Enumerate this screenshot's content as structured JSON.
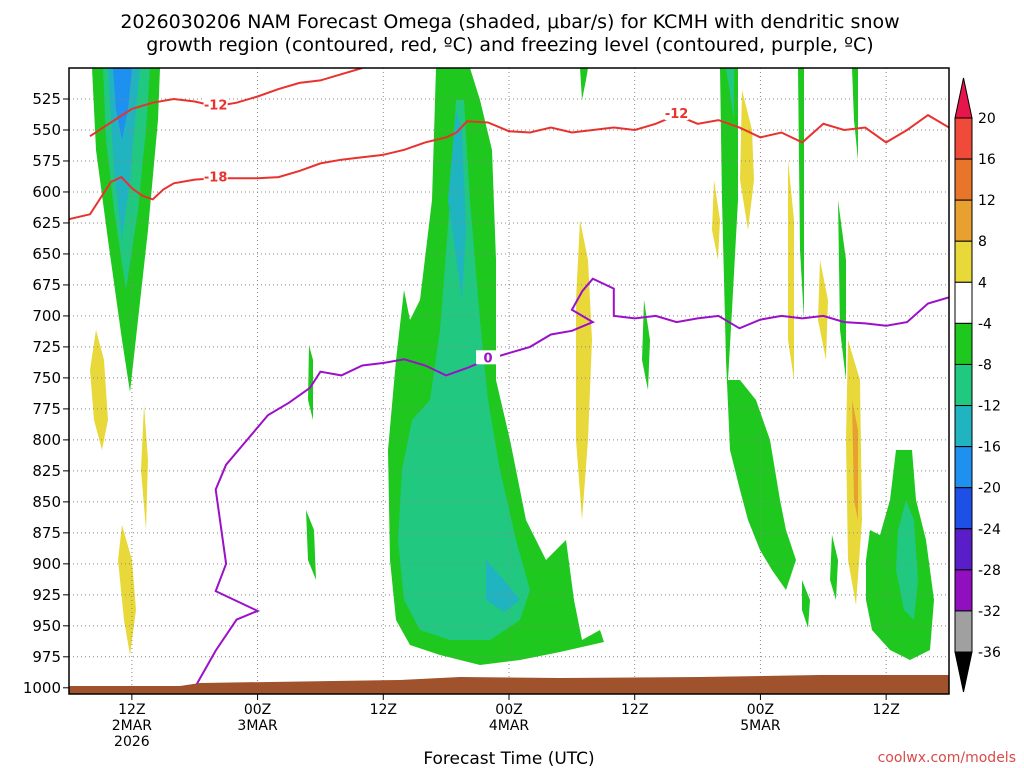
{
  "title_line1": "2026030206 NAM Forecast Omega (shaded, μbar/s) for KCMH with dendritic snow",
  "title_line2": "growth region (contoured, red, ºC) and freezing level (contoured, purple, ºC)",
  "credit": "coolwx.com/models",
  "colors": {
    "red_contour": "#e8322e",
    "purple_contour": "#9b10c8",
    "ground": "#a0522d",
    "grid": "#888888"
  },
  "chart_data": {
    "type": "heatmap",
    "xlabel": "Forecast Time (UTC)",
    "ylabel": "",
    "x_ticks": [
      {
        "hour": 6,
        "lines": [
          "12Z",
          "2MAR",
          "2026"
        ]
      },
      {
        "hour": 18,
        "lines": [
          "00Z",
          "3MAR"
        ]
      },
      {
        "hour": 30,
        "lines": [
          "12Z"
        ]
      },
      {
        "hour": 42,
        "lines": [
          "00Z",
          "4MAR"
        ]
      },
      {
        "hour": 54,
        "lines": [
          "12Z"
        ]
      },
      {
        "hour": 66,
        "lines": [
          "00Z",
          "5MAR"
        ]
      },
      {
        "hour": 78,
        "lines": [
          "12Z"
        ]
      }
    ],
    "x_range_hours": [
      0,
      84
    ],
    "y_ticks_hPa": [
      525,
      550,
      575,
      600,
      625,
      650,
      675,
      700,
      725,
      750,
      775,
      800,
      825,
      850,
      875,
      900,
      925,
      950,
      975,
      1000
    ],
    "y_range_hPa": [
      500,
      1005
    ],
    "colorbar": {
      "labels": [
        "20",
        "16",
        "12",
        "8",
        "4",
        "-4",
        "-8",
        "-12",
        "-16",
        "-20",
        "-24",
        "-28",
        "-32",
        "-36"
      ],
      "colors": [
        "#e6154a",
        "#f04a3a",
        "#e8762a",
        "#e8a030",
        "#e8d83a",
        "#ffffff",
        "#1ec81e",
        "#20c880",
        "#20b4c0",
        "#1e90f0",
        "#1e50e6",
        "#5a1ec8",
        "#9010c0",
        "#a0a0a0",
        "#000000"
      ]
    },
    "contours": {
      "dendritic_red": [
        {
          "label": "-18",
          "points": [
            [
              0,
              622
            ],
            [
              2,
              618
            ],
            [
              4,
              592
            ],
            [
              5,
              588
            ],
            [
              6,
              597
            ],
            [
              7,
              603
            ],
            [
              8,
              606
            ],
            [
              9,
              598
            ],
            [
              10,
              593
            ],
            [
              12,
              590
            ],
            [
              14,
              589
            ],
            [
              16,
              589
            ],
            [
              18,
              589
            ],
            [
              20,
              588
            ],
            [
              22,
              583
            ],
            [
              24,
              577
            ],
            [
              26,
              574
            ],
            [
              28,
              572
            ],
            [
              30,
              570
            ],
            [
              32,
              566
            ],
            [
              34,
              560
            ],
            [
              36,
              556
            ],
            [
              37,
              552
            ]
          ]
        },
        {
          "label": "-12",
          "points": [
            [
              2,
              555
            ],
            [
              4,
              544
            ],
            [
              6,
              533
            ],
            [
              8,
              528
            ],
            [
              10,
              525
            ],
            [
              12,
              527
            ],
            [
              14,
              531
            ],
            [
              16,
              528
            ],
            [
              18,
              523
            ],
            [
              20,
              517
            ],
            [
              22,
              512
            ],
            [
              24,
              510
            ],
            [
              26,
              505
            ],
            [
              28,
              500
            ]
          ]
        },
        {
          "label": "-12",
          "points": [
            [
              37,
              552
            ],
            [
              38,
              543
            ],
            [
              40,
              544
            ],
            [
              42,
              551
            ],
            [
              44,
              552
            ],
            [
              46,
              548
            ],
            [
              48,
              552
            ],
            [
              50,
              550
            ],
            [
              52,
              548
            ],
            [
              54,
              550
            ],
            [
              56,
              545
            ],
            [
              58,
              538
            ],
            [
              60,
              545
            ],
            [
              62,
              542
            ],
            [
              64,
              548
            ],
            [
              66,
              556
            ],
            [
              68,
              552
            ],
            [
              70,
              560
            ],
            [
              72,
              545
            ],
            [
              74,
              550
            ],
            [
              76,
              548
            ],
            [
              78,
              560
            ],
            [
              80,
              550
            ],
            [
              82,
              538
            ],
            [
              84,
              548
            ]
          ]
        }
      ],
      "freezing_purple": [
        {
          "label": "0",
          "points": [
            [
              12,
              1000
            ],
            [
              14,
              970
            ],
            [
              16,
              945
            ],
            [
              18,
              938
            ],
            [
              16,
              930
            ],
            [
              14,
              922
            ],
            [
              15,
              900
            ],
            [
              14,
              840
            ],
            [
              15,
              820
            ],
            [
              17,
              800
            ],
            [
              19,
              780
            ],
            [
              21,
              770
            ],
            [
              23,
              758
            ],
            [
              24,
              745
            ],
            [
              26,
              748
            ],
            [
              28,
              740
            ],
            [
              30,
              738
            ],
            [
              32,
              735
            ],
            [
              34,
              740
            ],
            [
              36,
              748
            ],
            [
              38,
              742
            ],
            [
              40,
              735
            ],
            [
              42,
              730
            ],
            [
              44,
              725
            ],
            [
              46,
              715
            ],
            [
              48,
              712
            ],
            [
              50,
              705
            ],
            [
              48,
              695
            ],
            [
              49,
              680
            ],
            [
              50,
              670
            ],
            [
              52,
              678
            ],
            [
              52,
              700
            ],
            [
              54,
              702
            ],
            [
              56,
              700
            ],
            [
              58,
              705
            ],
            [
              60,
              702
            ],
            [
              62,
              700
            ],
            [
              64,
              710
            ],
            [
              66,
              703
            ],
            [
              68,
              700
            ],
            [
              70,
              702
            ],
            [
              72,
              700
            ],
            [
              74,
              705
            ],
            [
              76,
              706
            ],
            [
              78,
              708
            ],
            [
              80,
              705
            ],
            [
              82,
              690
            ],
            [
              84,
              685
            ]
          ]
        }
      ]
    }
  }
}
